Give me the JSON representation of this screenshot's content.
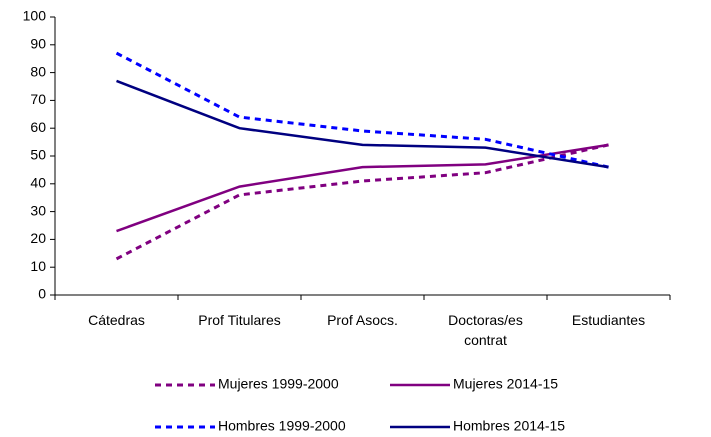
{
  "chart_data": {
    "type": "line",
    "categories": [
      "Cátedras",
      "Prof Titulares",
      "Prof Asocs.",
      "Doctoras/es contrat",
      "Estudiantes"
    ],
    "series": [
      {
        "name": "Mujeres 1999-2000",
        "color": "#800080",
        "dashed": true,
        "values": [
          13,
          36,
          41,
          44,
          54
        ]
      },
      {
        "name": "Mujeres 2014-15",
        "color": "#800080",
        "dashed": false,
        "values": [
          23,
          39,
          46,
          47,
          54
        ]
      },
      {
        "name": "Hombres 1999-2000",
        "color": "#0000ff",
        "dashed": true,
        "values": [
          87,
          64,
          59,
          56,
          46
        ]
      },
      {
        "name": "Hombres 2014-15",
        "color": "#000080",
        "dashed": false,
        "values": [
          77,
          60,
          54,
          53,
          46
        ]
      }
    ],
    "ylim": [
      0,
      100
    ],
    "yticks": [
      0,
      10,
      20,
      30,
      40,
      50,
      60,
      70,
      80,
      90,
      100
    ],
    "grid": false
  }
}
